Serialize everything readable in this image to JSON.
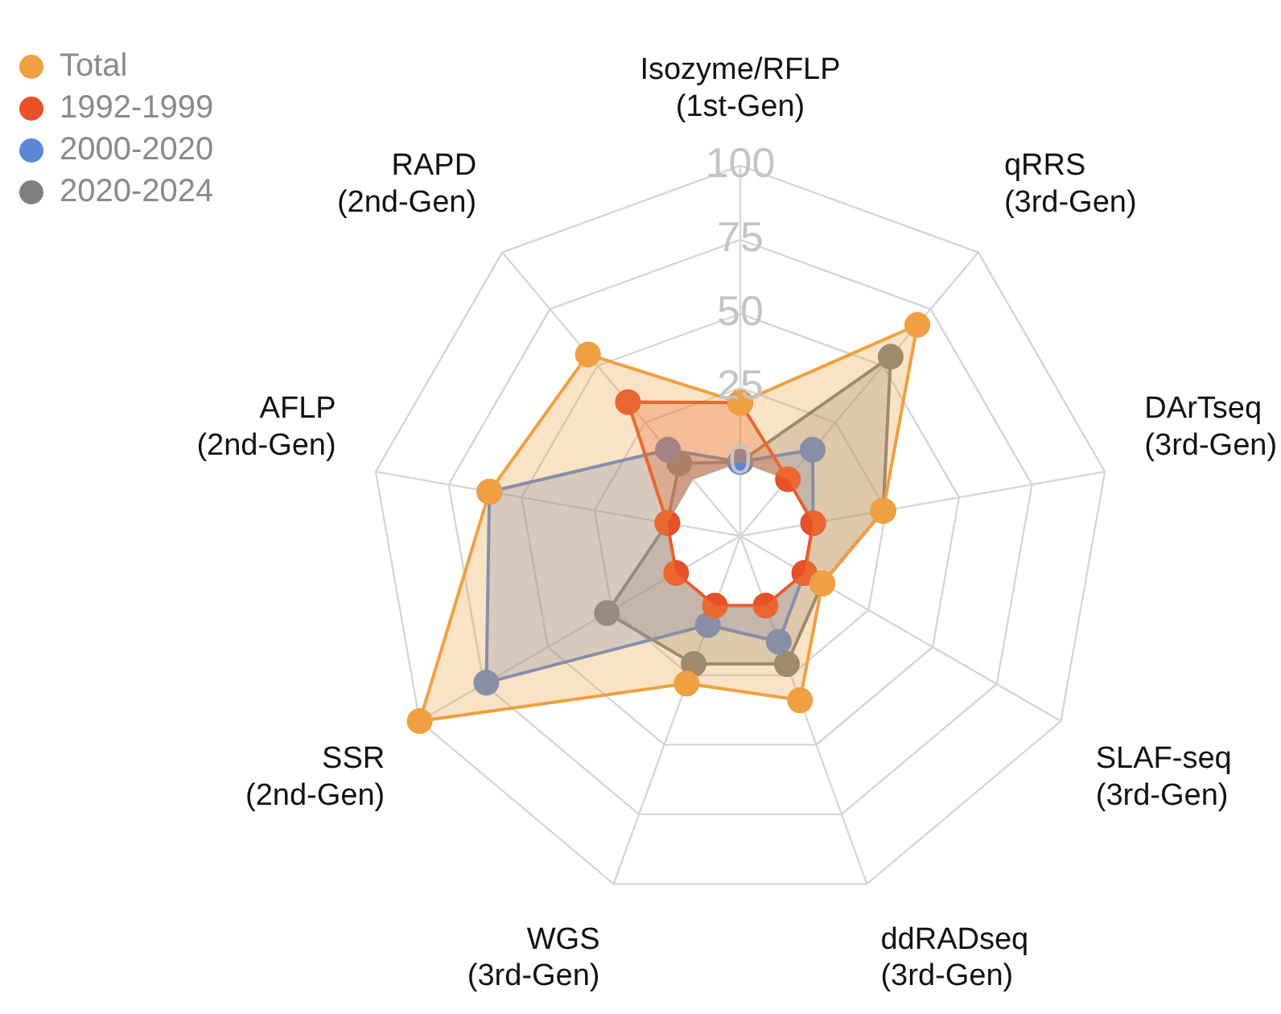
{
  "chart_data": {
    "type": "radar",
    "categories": [
      "Isozyme/RFLP\n(1st-Gen)",
      "qRRS\n(3rd-Gen)",
      "DArTseq\n(3rd-Gen)",
      "SLAF-seq\n(3rd-Gen)",
      "ddRADseq\n(3rd-Gen)",
      "WGS\n(3rd-Gen)",
      "SSR\n(2nd-Gen)",
      "AFLP\n(2nd-Gen)",
      "RAPD\n(2nd-Gen)"
    ],
    "series": [
      {
        "name": "Total",
        "color": "#f0a040",
        "values": [
          20,
          68,
          24,
          7,
          34,
          28,
          100,
          61,
          55
        ]
      },
      {
        "name": "1992-1999",
        "color": "#e8502a",
        "values": [
          20,
          0,
          0,
          0,
          0,
          0,
          0,
          0,
          34
        ]
      },
      {
        "name": "2000-2020",
        "color": "#5b87d6",
        "values": [
          0,
          13,
          0,
          0,
          13,
          7,
          74,
          61,
          13
        ]
      },
      {
        "name": "2020-2024",
        "color": "#808080",
        "values": [
          0,
          54,
          24,
          7,
          21,
          21,
          27,
          0,
          7
        ]
      }
    ],
    "ylim": [
      -25,
      100
    ],
    "yticks": [
      0,
      25,
      50,
      75,
      100
    ],
    "grid": true,
    "legend": "top left",
    "marker": "circle"
  }
}
